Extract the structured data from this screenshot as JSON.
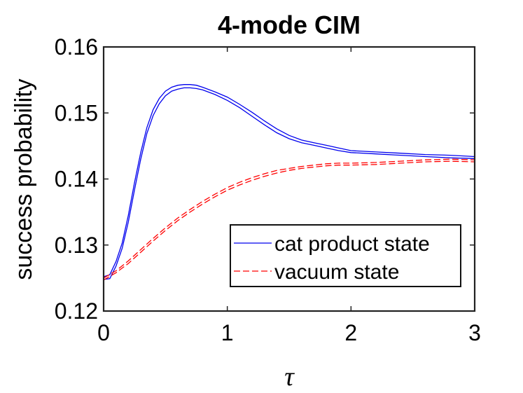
{
  "chart_data": {
    "type": "line",
    "title": "4-mode CIM",
    "xlabel": "τ",
    "ylabel": "success probability",
    "xlim": [
      0,
      3
    ],
    "ylim": [
      0.12,
      0.16
    ],
    "xticks": [
      0,
      1,
      2,
      3
    ],
    "yticks": [
      0.12,
      0.13,
      0.14,
      0.15,
      0.16
    ],
    "xtick_labels": [
      "0",
      "1",
      "2",
      "3"
    ],
    "ytick_labels": [
      "0.12",
      "0.13",
      "0.14",
      "0.15",
      "0.16"
    ],
    "legend_position": "bottom-right",
    "series": [
      {
        "name": "cat product state",
        "legend": true,
        "color": "#0000ee",
        "style": "solid",
        "x": [
          0,
          0.05,
          0.1,
          0.15,
          0.2,
          0.25,
          0.3,
          0.35,
          0.4,
          0.45,
          0.5,
          0.55,
          0.6,
          0.65,
          0.7,
          0.75,
          0.8,
          0.9,
          1.0,
          1.1,
          1.2,
          1.3,
          1.4,
          1.5,
          1.6,
          1.7,
          1.8,
          1.9,
          2.0,
          2.2,
          2.4,
          2.6,
          2.8,
          3.0
        ],
        "y": [
          0.1252,
          0.1255,
          0.1275,
          0.1303,
          0.1345,
          0.1395,
          0.144,
          0.1478,
          0.1505,
          0.1522,
          0.1533,
          0.1539,
          0.1542,
          0.1543,
          0.1543,
          0.1542,
          0.1539,
          0.1532,
          0.1524,
          0.1513,
          0.1501,
          0.1488,
          0.1476,
          0.1466,
          0.1459,
          0.1455,
          0.1451,
          0.1447,
          0.1443,
          0.1441,
          0.1439,
          0.1437,
          0.1436,
          0.1434
        ]
      },
      {
        "name": "cat product state (lower bound)",
        "legend": false,
        "color": "#0000ee",
        "style": "solid",
        "x": [
          0,
          0.05,
          0.1,
          0.15,
          0.2,
          0.25,
          0.3,
          0.35,
          0.4,
          0.45,
          0.5,
          0.55,
          0.6,
          0.65,
          0.7,
          0.75,
          0.8,
          0.9,
          1.0,
          1.1,
          1.2,
          1.3,
          1.4,
          1.5,
          1.6,
          1.7,
          1.8,
          1.9,
          2.0,
          2.2,
          2.4,
          2.6,
          2.8,
          3.0
        ],
        "y": [
          0.1248,
          0.1249,
          0.1268,
          0.1295,
          0.1335,
          0.1384,
          0.143,
          0.1469,
          0.1496,
          0.1514,
          0.1526,
          0.1533,
          0.1536,
          0.1538,
          0.1538,
          0.1537,
          0.1535,
          0.1528,
          0.1519,
          0.1508,
          0.1495,
          0.1482,
          0.147,
          0.1461,
          0.1455,
          0.1451,
          0.1447,
          0.1443,
          0.144,
          0.1438,
          0.1436,
          0.1434,
          0.1432,
          0.1431
        ]
      },
      {
        "name": "vacuum state",
        "legend": true,
        "color": "#ff0000",
        "style": "dashed",
        "x": [
          0,
          0.1,
          0.2,
          0.3,
          0.4,
          0.5,
          0.6,
          0.7,
          0.8,
          0.9,
          1.0,
          1.1,
          1.2,
          1.3,
          1.4,
          1.5,
          1.6,
          1.7,
          1.8,
          1.9,
          2.0,
          2.2,
          2.4,
          2.6,
          2.8,
          3.0
        ],
        "y": [
          0.125,
          0.1261,
          0.1276,
          0.1293,
          0.131,
          0.1326,
          0.1341,
          0.1354,
          0.1366,
          0.1377,
          0.1387,
          0.1395,
          0.1402,
          0.1408,
          0.1413,
          0.1416,
          0.1419,
          0.1421,
          0.1423,
          0.1424,
          0.1424,
          0.1425,
          0.1427,
          0.1429,
          0.143,
          0.1429
        ]
      },
      {
        "name": "vacuum state (lower bound)",
        "legend": false,
        "color": "#ff0000",
        "style": "dashed",
        "x": [
          0,
          0.1,
          0.2,
          0.3,
          0.4,
          0.5,
          0.6,
          0.7,
          0.8,
          0.9,
          1.0,
          1.1,
          1.2,
          1.3,
          1.4,
          1.5,
          1.6,
          1.7,
          1.8,
          1.9,
          2.0,
          2.2,
          2.4,
          2.6,
          2.8,
          3.0
        ],
        "y": [
          0.1247,
          0.1258,
          0.1272,
          0.1289,
          0.1306,
          0.1322,
          0.1337,
          0.135,
          0.1362,
          0.1373,
          0.1383,
          0.1391,
          0.1398,
          0.1404,
          0.1409,
          0.1413,
          0.1416,
          0.1418,
          0.142,
          0.1421,
          0.1421,
          0.1422,
          0.1424,
          0.1426,
          0.1427,
          0.1426
        ]
      }
    ]
  }
}
